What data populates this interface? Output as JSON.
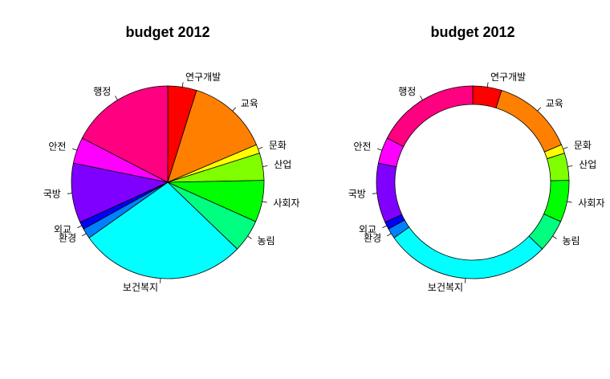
{
  "chart_data": [
    {
      "type": "pie",
      "title": "budget 2012",
      "categories": [
        "연구개발",
        "교육",
        "문화",
        "산업",
        "사회자",
        "농림",
        "보건복지",
        "환경",
        "외교",
        "국방",
        "안전",
        "행정"
      ],
      "values": [
        16.0,
        45.5,
        4.9,
        15.1,
        23.1,
        18.1,
        92.6,
        5.7,
        4.1,
        33.0,
        14.5,
        57.5
      ],
      "colors": [
        "#FF0000",
        "#FF8000",
        "#FFFF00",
        "#80FF00",
        "#00FF00",
        "#00FF80",
        "#00FFFF",
        "#0080FF",
        "#0000FF",
        "#8000FF",
        "#FF00FF",
        "#FF0080"
      ]
    },
    {
      "type": "donut",
      "title": "budget 2012",
      "categories": [
        "연구개발",
        "교육",
        "문화",
        "산업",
        "사회자",
        "농림",
        "보건복지",
        "환경",
        "외교",
        "국방",
        "안전",
        "행정"
      ],
      "values": [
        16.0,
        45.5,
        4.9,
        15.1,
        23.1,
        18.1,
        92.6,
        5.7,
        4.1,
        33.0,
        14.5,
        57.5
      ],
      "colors": [
        "#FF0000",
        "#FF8000",
        "#FFFF00",
        "#80FF00",
        "#00FF00",
        "#00FF80",
        "#00FFFF",
        "#0080FF",
        "#0000FF",
        "#8000FF",
        "#FF00FF",
        "#FF0080"
      ]
    }
  ]
}
